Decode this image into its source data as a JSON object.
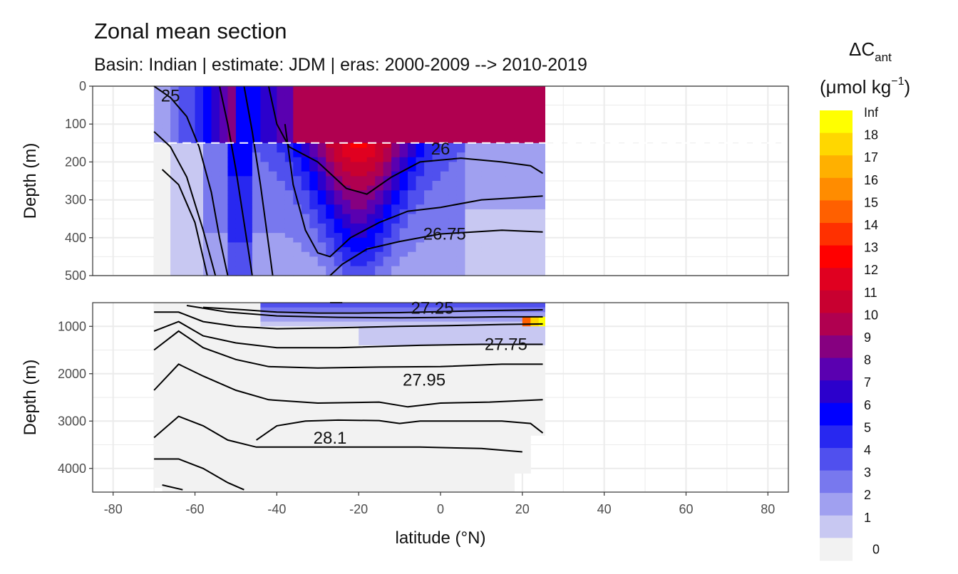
{
  "chart_data": {
    "type": "heatmap",
    "title": "Zonal mean section",
    "subtitle": "Basin: Indian | estimate: JDM  | eras: 2000-2009 --> 2010-2019",
    "xlabel": "latitude (°N)",
    "ylabel": "Depth (m)",
    "xlim": [
      -85,
      85
    ],
    "x_ticks": [
      -80,
      -60,
      -40,
      -20,
      0,
      20,
      40,
      60,
      80
    ],
    "data_lat_range": [
      -70,
      25.5
    ],
    "panels": [
      {
        "name": "upper",
        "ylim": [
          0,
          500
        ],
        "y_ticks": [
          0,
          100,
          200,
          300,
          400,
          500
        ],
        "mixed_layer_line_depth": 150
      },
      {
        "name": "lower",
        "ylim": [
          500,
          4500
        ],
        "y_ticks": [
          1000,
          2000,
          3000,
          4000
        ]
      }
    ],
    "isopycnal_labels": [
      {
        "text": "25",
        "lat": -66,
        "depth": 40
      },
      {
        "text": "26",
        "lat": 0,
        "depth": 180
      },
      {
        "text": "26.75",
        "lat": 1,
        "depth": 405
      },
      {
        "text": "27.25",
        "lat": -2,
        "depth": 730
      },
      {
        "text": "27.75",
        "lat": 16,
        "depth": 1500
      },
      {
        "text": "27.95",
        "lat": -4,
        "depth": 2250
      },
      {
        "text": "28.1",
        "lat": -27,
        "depth": 3480
      }
    ],
    "legend": {
      "title_main": "ΔC",
      "title_sub": "ant",
      "unit_open": "(μmol kg",
      "unit_sup": "−1",
      "unit_close": ")",
      "breaks": [
        "Inf",
        "18",
        "17",
        "16",
        "15",
        "14",
        "13",
        "12",
        "11",
        "10",
        "9",
        "8",
        "7",
        "6",
        "5",
        "4",
        "3",
        "2",
        "1",
        "0"
      ],
      "colors": [
        "#ffff00",
        "#ffd700",
        "#ffb000",
        "#ff8c00",
        "#ff6000",
        "#ff3000",
        "#ff0000",
        "#e00020",
        "#c80030",
        "#b00050",
        "#860080",
        "#5a00b0",
        "#2c00cc",
        "#0000ff",
        "#2828f0",
        "#5050ee",
        "#7878ee",
        "#a0a0f0",
        "#c8c8f2",
        "#f2f2f2"
      ]
    },
    "grid": true
  }
}
